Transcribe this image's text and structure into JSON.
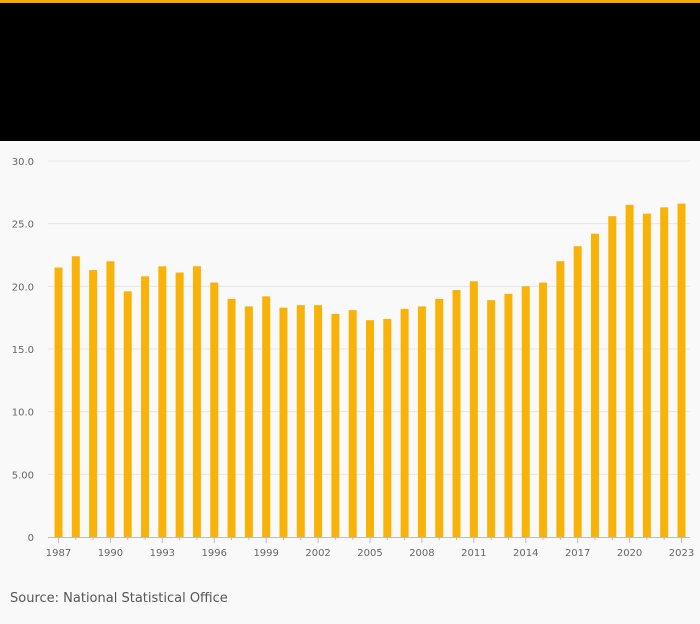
{
  "colors": {
    "accent": "#f5a800",
    "bar": "#f9b208",
    "grid": "#e6e6e6",
    "axis": "#bdbdbd",
    "tick_text": "#666666",
    "header_band": "#000000",
    "background": "#f9f9f9"
  },
  "source": "Source: National Statistical Office",
  "chart_data": {
    "type": "bar",
    "title": "",
    "xlabel": "",
    "ylabel": "",
    "ylim": [
      0,
      30
    ],
    "y_ticks": [
      0,
      5,
      10,
      15,
      20,
      25,
      30
    ],
    "y_tick_labels": [
      "0",
      "5.00",
      "10.0",
      "15.0",
      "20.0",
      "25.0",
      "30.0"
    ],
    "x_tick_labels": [
      "1987",
      "1990",
      "1993",
      "1996",
      "1999",
      "2002",
      "2005",
      "2008",
      "2011",
      "2014",
      "2017",
      "2020",
      "2023"
    ],
    "categories": [
      "1987",
      "1988",
      "1989",
      "1990",
      "1991",
      "1992",
      "1993",
      "1994",
      "1995",
      "1996",
      "1997",
      "1998",
      "1999",
      "2000",
      "2001",
      "2002",
      "2003",
      "2004",
      "2005",
      "2006",
      "2007",
      "2008",
      "2009",
      "2010",
      "2011",
      "2012",
      "2013",
      "2014",
      "2015",
      "2016",
      "2017",
      "2018",
      "2019",
      "2020",
      "2021",
      "2022",
      "2023"
    ],
    "values": [
      21.5,
      22.4,
      21.3,
      22.0,
      19.6,
      20.8,
      21.6,
      21.1,
      21.6,
      20.3,
      19.0,
      18.4,
      19.2,
      18.3,
      18.5,
      18.5,
      17.8,
      18.1,
      17.3,
      17.4,
      18.2,
      18.4,
      19.0,
      19.7,
      20.4,
      18.9,
      19.4,
      20.0,
      20.3,
      22.0,
      23.2,
      24.2,
      25.6,
      26.5,
      25.8,
      26.3,
      26.6
    ],
    "grid": true,
    "legend": "none"
  }
}
